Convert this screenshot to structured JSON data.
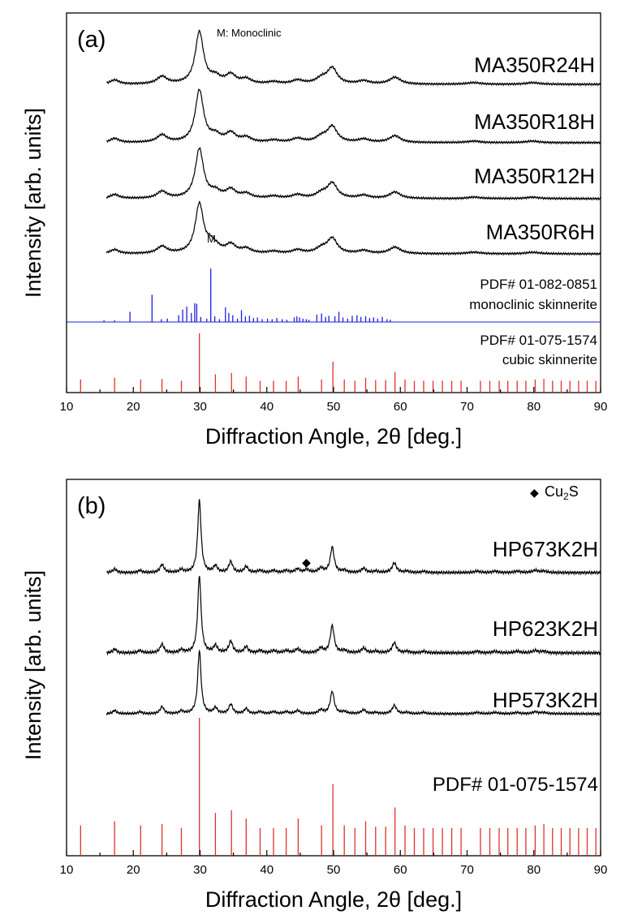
{
  "chart_data": [
    {
      "type": "line",
      "panel_label": "(a)",
      "annotation": "M: Monoclinic",
      "peak_marker": {
        "label": "M",
        "pattern": "MA350R6H",
        "x": 31.5
      },
      "xlabel": "Diffraction Angle, 2θ [deg.]",
      "ylabel": "Intensity [arb. units]",
      "xlim": [
        10,
        90
      ],
      "xticks": [
        10,
        20,
        30,
        40,
        50,
        60,
        70,
        80,
        90
      ],
      "xtick_labels": [
        "10",
        "20",
        "30",
        "40",
        "50",
        "60",
        "70",
        "80",
        "90"
      ],
      "peaks": [
        {
          "x": 17.2,
          "h": 0.08,
          "w": 0.8
        },
        {
          "x": 24.3,
          "h": 0.14,
          "w": 0.9
        },
        {
          "x": 29.9,
          "h": 1.0,
          "w": 0.75
        },
        {
          "x": 32.3,
          "h": 0.12,
          "w": 0.9
        },
        {
          "x": 34.6,
          "h": 0.17,
          "w": 0.9
        },
        {
          "x": 36.9,
          "h": 0.09,
          "w": 0.9
        },
        {
          "x": 41.0,
          "h": 0.04,
          "w": 1.0
        },
        {
          "x": 44.6,
          "h": 0.07,
          "w": 1.0
        },
        {
          "x": 48.2,
          "h": 0.1,
          "w": 1.0
        },
        {
          "x": 49.8,
          "h": 0.3,
          "w": 0.9
        },
        {
          "x": 54.5,
          "h": 0.06,
          "w": 1.0
        },
        {
          "x": 59.2,
          "h": 0.13,
          "w": 1.0
        },
        {
          "x": 71.0,
          "h": 0.03,
          "w": 1.2
        },
        {
          "x": 79.8,
          "h": 0.03,
          "w": 1.2
        }
      ],
      "series": [
        {
          "name": "MA350R24H",
          "scale": 1.0,
          "extra": []
        },
        {
          "name": "MA350R18H",
          "scale": 1.0,
          "extra": []
        },
        {
          "name": "MA350R12H",
          "scale": 0.95,
          "extra": []
        },
        {
          "name": "MA350R6H",
          "scale": 0.95,
          "extra": [
            {
              "x": 31.5,
              "h": 0.12,
              "w": 0.6
            }
          ]
        }
      ],
      "reference_patterns": [
        {
          "name": "PDF# 01-082-0851",
          "description": "monoclinic skinnerite",
          "color": "#1f1fdd",
          "sticks": [
            [
              15.6,
              0.03
            ],
            [
              17.2,
              0.03
            ],
            [
              19.5,
              0.18
            ],
            [
              22.8,
              0.48
            ],
            [
              24.2,
              0.05
            ],
            [
              25.1,
              0.06
            ],
            [
              26.8,
              0.12
            ],
            [
              27.4,
              0.22
            ],
            [
              28.0,
              0.27
            ],
            [
              28.7,
              0.16
            ],
            [
              29.2,
              0.33
            ],
            [
              29.5,
              0.32
            ],
            [
              30.1,
              0.09
            ],
            [
              31.0,
              0.06
            ],
            [
              31.6,
              0.94
            ],
            [
              32.2,
              0.1
            ],
            [
              32.9,
              0.05
            ],
            [
              33.8,
              0.26
            ],
            [
              34.3,
              0.16
            ],
            [
              34.9,
              0.12
            ],
            [
              35.6,
              0.06
            ],
            [
              36.2,
              0.21
            ],
            [
              36.8,
              0.1
            ],
            [
              37.4,
              0.11
            ],
            [
              38.0,
              0.07
            ],
            [
              38.6,
              0.08
            ],
            [
              39.3,
              0.05
            ],
            [
              40.1,
              0.06
            ],
            [
              40.8,
              0.05
            ],
            [
              41.5,
              0.07
            ],
            [
              42.3,
              0.05
            ],
            [
              43.0,
              0.04
            ],
            [
              44.1,
              0.08
            ],
            [
              44.5,
              0.1
            ],
            [
              44.9,
              0.08
            ],
            [
              45.4,
              0.06
            ],
            [
              45.9,
              0.05
            ],
            [
              46.3,
              0.04
            ],
            [
              47.5,
              0.13
            ],
            [
              48.2,
              0.15
            ],
            [
              48.8,
              0.09
            ],
            [
              49.3,
              0.11
            ],
            [
              50.2,
              0.1
            ],
            [
              50.8,
              0.18
            ],
            [
              51.4,
              0.08
            ],
            [
              52.1,
              0.06
            ],
            [
              52.8,
              0.11
            ],
            [
              53.5,
              0.12
            ],
            [
              54.1,
              0.09
            ],
            [
              54.8,
              0.1
            ],
            [
              55.4,
              0.07
            ],
            [
              56.0,
              0.08
            ],
            [
              56.6,
              0.06
            ],
            [
              57.3,
              0.09
            ],
            [
              58.0,
              0.05
            ],
            [
              58.5,
              0.04
            ]
          ]
        },
        {
          "name": "PDF# 01-075-1574",
          "description": "cubic skinnerite",
          "color": "#e0302d",
          "sticks": [
            [
              12.1,
              0.22
            ],
            [
              17.2,
              0.25
            ],
            [
              21.1,
              0.22
            ],
            [
              24.3,
              0.23
            ],
            [
              27.2,
              0.2
            ],
            [
              29.9,
              1.0
            ],
            [
              32.3,
              0.31
            ],
            [
              34.7,
              0.33
            ],
            [
              36.9,
              0.27
            ],
            [
              39.0,
              0.2
            ],
            [
              41.0,
              0.2
            ],
            [
              42.9,
              0.2
            ],
            [
              44.7,
              0.27
            ],
            [
              48.2,
              0.22
            ],
            [
              49.9,
              0.52
            ],
            [
              51.6,
              0.22
            ],
            [
              53.2,
              0.2
            ],
            [
              54.8,
              0.25
            ],
            [
              56.3,
              0.21
            ],
            [
              57.8,
              0.21
            ],
            [
              59.2,
              0.35
            ],
            [
              60.7,
              0.22
            ],
            [
              62.1,
              0.2
            ],
            [
              63.5,
              0.2
            ],
            [
              64.9,
              0.2
            ],
            [
              66.3,
              0.2
            ],
            [
              67.7,
              0.2
            ],
            [
              69.1,
              0.2
            ],
            [
              72.0,
              0.2
            ],
            [
              73.4,
              0.2
            ],
            [
              74.8,
              0.2
            ],
            [
              76.1,
              0.2
            ],
            [
              77.5,
              0.2
            ],
            [
              78.8,
              0.2
            ],
            [
              80.2,
              0.22
            ],
            [
              81.5,
              0.23
            ],
            [
              82.8,
              0.2
            ],
            [
              84.1,
              0.2
            ],
            [
              85.4,
              0.2
            ],
            [
              86.7,
              0.2
            ],
            [
              88.0,
              0.2
            ],
            [
              89.3,
              0.2
            ]
          ]
        }
      ]
    },
    {
      "type": "line",
      "panel_label": "(b)",
      "legend": {
        "symbol": "◆",
        "label": "Cu",
        "subscript": "2",
        "label_end": "S"
      },
      "marker": {
        "symbol": "◆",
        "x": 46.0,
        "pattern": "HP673K2H"
      },
      "xlabel": "Diffraction Angle, 2θ [deg.]",
      "ylabel": "Intensity [arb. units]",
      "xlim": [
        10,
        90
      ],
      "xticks": [
        10,
        20,
        30,
        40,
        50,
        60,
        70,
        80,
        90
      ],
      "xtick_labels": [
        "10",
        "20",
        "30",
        "40",
        "50",
        "60",
        "70",
        "80",
        "90"
      ],
      "peaks": [
        {
          "x": 17.2,
          "h": 0.05,
          "w": 0.35
        },
        {
          "x": 21.0,
          "h": 0.03,
          "w": 0.35
        },
        {
          "x": 24.3,
          "h": 0.11,
          "w": 0.35
        },
        {
          "x": 27.2,
          "h": 0.04,
          "w": 0.35
        },
        {
          "x": 29.9,
          "h": 1.0,
          "w": 0.3
        },
        {
          "x": 32.3,
          "h": 0.09,
          "w": 0.35
        },
        {
          "x": 34.6,
          "h": 0.15,
          "w": 0.35
        },
        {
          "x": 36.9,
          "h": 0.08,
          "w": 0.35
        },
        {
          "x": 39.0,
          "h": 0.03,
          "w": 0.4
        },
        {
          "x": 41.0,
          "h": 0.03,
          "w": 0.4
        },
        {
          "x": 42.9,
          "h": 0.03,
          "w": 0.4
        },
        {
          "x": 44.6,
          "h": 0.05,
          "w": 0.4
        },
        {
          "x": 48.1,
          "h": 0.06,
          "w": 0.4
        },
        {
          "x": 49.8,
          "h": 0.35,
          "w": 0.35
        },
        {
          "x": 51.6,
          "h": 0.03,
          "w": 0.4
        },
        {
          "x": 54.5,
          "h": 0.06,
          "w": 0.4
        },
        {
          "x": 56.3,
          "h": 0.02,
          "w": 0.4
        },
        {
          "x": 59.1,
          "h": 0.13,
          "w": 0.4
        },
        {
          "x": 61.0,
          "h": 0.02,
          "w": 0.4
        },
        {
          "x": 63.5,
          "h": 0.02,
          "w": 0.4
        },
        {
          "x": 71.5,
          "h": 0.02,
          "w": 0.5
        },
        {
          "x": 74.2,
          "h": 0.02,
          "w": 0.5
        },
        {
          "x": 77.5,
          "h": 0.02,
          "w": 0.5
        },
        {
          "x": 80.2,
          "h": 0.03,
          "w": 0.5
        },
        {
          "x": 81.5,
          "h": 0.02,
          "w": 0.5
        }
      ],
      "series": [
        {
          "name": "HP673K2H",
          "scale": 1.0,
          "extra": [
            {
              "x": 46.0,
              "h": 0.04,
              "w": 0.4
            }
          ]
        },
        {
          "name": "HP623K2H",
          "scale": 1.0,
          "extra": []
        },
        {
          "name": "HP573K2H",
          "scale": 1.0,
          "extra": []
        }
      ],
      "reference_patterns": [
        {
          "name": "PDF# 01-075-1574",
          "description": "",
          "color": "#e0302d",
          "sticks": [
            [
              12.1,
              0.22
            ],
            [
              17.2,
              0.25
            ],
            [
              21.1,
              0.22
            ],
            [
              24.3,
              0.23
            ],
            [
              27.2,
              0.2
            ],
            [
              29.9,
              1.0
            ],
            [
              32.3,
              0.31
            ],
            [
              34.7,
              0.33
            ],
            [
              36.9,
              0.27
            ],
            [
              39.0,
              0.2
            ],
            [
              41.0,
              0.2
            ],
            [
              42.9,
              0.2
            ],
            [
              44.7,
              0.27
            ],
            [
              48.2,
              0.22
            ],
            [
              49.9,
              0.52
            ],
            [
              51.6,
              0.22
            ],
            [
              53.2,
              0.2
            ],
            [
              54.8,
              0.25
            ],
            [
              56.3,
              0.21
            ],
            [
              57.8,
              0.21
            ],
            [
              59.2,
              0.35
            ],
            [
              60.7,
              0.22
            ],
            [
              62.1,
              0.2
            ],
            [
              63.5,
              0.2
            ],
            [
              64.9,
              0.2
            ],
            [
              66.3,
              0.2
            ],
            [
              67.7,
              0.2
            ],
            [
              69.1,
              0.2
            ],
            [
              72.0,
              0.2
            ],
            [
              73.4,
              0.2
            ],
            [
              74.8,
              0.2
            ],
            [
              76.1,
              0.2
            ],
            [
              77.5,
              0.2
            ],
            [
              78.8,
              0.2
            ],
            [
              80.2,
              0.22
            ],
            [
              81.5,
              0.23
            ],
            [
              82.8,
              0.2
            ],
            [
              84.1,
              0.2
            ],
            [
              85.4,
              0.2
            ],
            [
              86.7,
              0.2
            ],
            [
              88.0,
              0.2
            ],
            [
              89.3,
              0.2
            ]
          ]
        }
      ]
    }
  ]
}
